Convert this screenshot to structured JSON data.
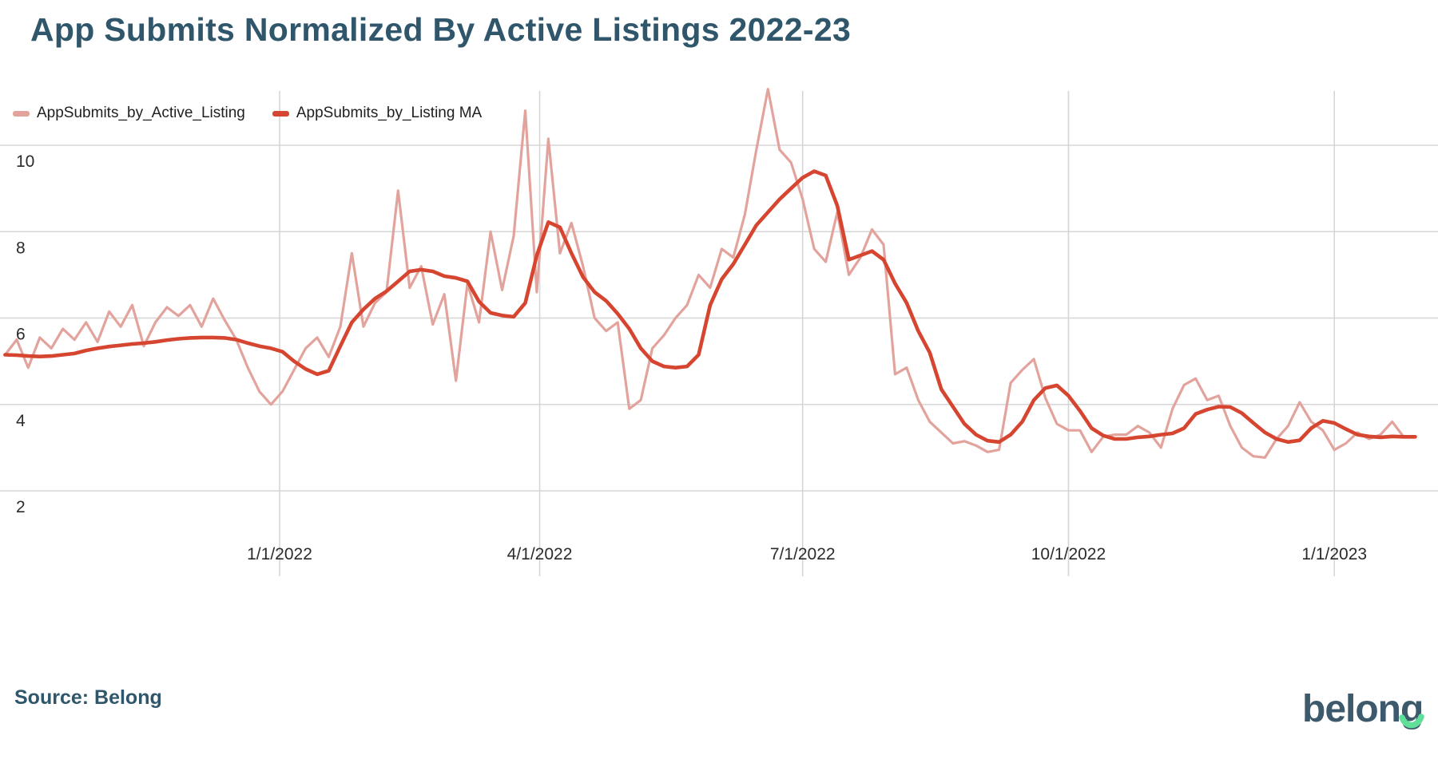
{
  "header": {
    "title": "App Submits Normalized By Active Listings 2022-23"
  },
  "legend": [
    {
      "label": "AppSubmits_by_Active_Listing",
      "color": "#E3A39D"
    },
    {
      "label": "AppSubmits_by_Listing MA",
      "color": "#D6452F"
    }
  ],
  "footer": {
    "source_label": "Source: Belong",
    "logo_text": "belong",
    "logo_color": "#3D5A6D",
    "logo_smile_color": "#5FDF9A"
  },
  "colors": {
    "title": "#2F566B",
    "gridline": "#D6D6D6",
    "axis_text": "#2b2b2b",
    "raw_series": "#E3A39D",
    "ma_series": "#D6452F",
    "background": "#FFFFFF"
  },
  "chart_data": {
    "type": "line",
    "title": "App Submits Normalized By Active Listings 2022-23",
    "xlabel": "",
    "ylabel": "",
    "grid": true,
    "legend_position": "top-left",
    "ylim": [
      2,
      11.5
    ],
    "y_ticks": [
      {
        "value": 10,
        "label": "10"
      },
      {
        "value": 8,
        "label": "8"
      },
      {
        "value": 6,
        "label": "6"
      },
      {
        "value": 4,
        "label": "4"
      },
      {
        "value": 2,
        "label": "2"
      }
    ],
    "x_ticks": [
      {
        "date": "2022-01-01",
        "label": "1/1/2022"
      },
      {
        "date": "2022-04-01",
        "label": "4/1/2022"
      },
      {
        "date": "2022-07-01",
        "label": "7/1/2022"
      },
      {
        "date": "2022-10-01",
        "label": "10/1/2022"
      },
      {
        "date": "2023-01-01",
        "label": "1/1/2023"
      }
    ],
    "start_date": "2021-09-28",
    "step_days": 4,
    "series": [
      {
        "name": "AppSubmits_by_Active_Listing",
        "color": "#E3A39D",
        "width": 3.2,
        "values": [
          5.15,
          5.5,
          4.85,
          5.55,
          5.3,
          5.75,
          5.5,
          5.9,
          5.45,
          6.15,
          5.8,
          6.3,
          5.35,
          5.9,
          6.25,
          6.05,
          6.3,
          5.8,
          6.45,
          5.95,
          5.5,
          4.85,
          4.3,
          4.0,
          4.3,
          4.8,
          5.3,
          5.55,
          5.1,
          5.8,
          7.5,
          5.8,
          6.35,
          6.6,
          8.95,
          6.7,
          7.2,
          5.85,
          6.55,
          4.55,
          6.8,
          5.9,
          8.0,
          6.65,
          7.9,
          10.8,
          6.6,
          10.15,
          7.5,
          8.2,
          7.2,
          6.0,
          5.7,
          5.9,
          3.9,
          4.1,
          5.3,
          5.6,
          6.0,
          6.3,
          7.0,
          6.7,
          7.6,
          7.4,
          8.4,
          9.9,
          11.3,
          9.9,
          9.6,
          8.75,
          7.6,
          7.3,
          8.45,
          7.0,
          7.4,
          8.05,
          7.7,
          4.7,
          4.85,
          4.1,
          3.6,
          3.35,
          3.1,
          3.15,
          3.05,
          2.9,
          2.95,
          4.5,
          4.8,
          5.05,
          4.15,
          3.55,
          3.4,
          3.4,
          2.9,
          3.25,
          3.3,
          3.3,
          3.5,
          3.35,
          3.0,
          3.9,
          4.45,
          4.6,
          4.1,
          4.2,
          3.5,
          3.0,
          2.8,
          2.77,
          3.2,
          3.5,
          4.05,
          3.6,
          3.4,
          2.95,
          3.1,
          3.35,
          3.2,
          3.3,
          3.6,
          3.25,
          3.25
        ]
      },
      {
        "name": "AppSubmits_by_Listing MA",
        "color": "#D6452F",
        "width": 4.6,
        "values": [
          5.15,
          5.14,
          5.12,
          5.11,
          5.12,
          5.15,
          5.18,
          5.25,
          5.3,
          5.34,
          5.37,
          5.4,
          5.42,
          5.45,
          5.49,
          5.52,
          5.54,
          5.55,
          5.55,
          5.54,
          5.5,
          5.42,
          5.35,
          5.3,
          5.22,
          5.0,
          4.82,
          4.7,
          4.78,
          5.35,
          5.9,
          6.2,
          6.45,
          6.62,
          6.85,
          7.08,
          7.12,
          7.08,
          6.97,
          6.93,
          6.85,
          6.38,
          6.12,
          6.06,
          6.03,
          6.35,
          7.45,
          8.22,
          8.1,
          7.5,
          6.95,
          6.6,
          6.4,
          6.1,
          5.75,
          5.3,
          5.0,
          4.88,
          4.85,
          4.88,
          5.15,
          6.3,
          6.9,
          7.25,
          7.7,
          8.15,
          8.45,
          8.75,
          9.0,
          9.25,
          9.4,
          9.3,
          8.6,
          7.35,
          7.45,
          7.55,
          7.35,
          6.8,
          6.35,
          5.7,
          5.2,
          4.35,
          3.95,
          3.55,
          3.3,
          3.16,
          3.13,
          3.3,
          3.6,
          4.1,
          4.38,
          4.44,
          4.2,
          3.85,
          3.45,
          3.28,
          3.2,
          3.2,
          3.24,
          3.26,
          3.3,
          3.33,
          3.45,
          3.78,
          3.88,
          3.95,
          3.94,
          3.8,
          3.57,
          3.35,
          3.2,
          3.13,
          3.17,
          3.45,
          3.62,
          3.57,
          3.43,
          3.3,
          3.26,
          3.24,
          3.26,
          3.25,
          3.25
        ]
      }
    ]
  }
}
